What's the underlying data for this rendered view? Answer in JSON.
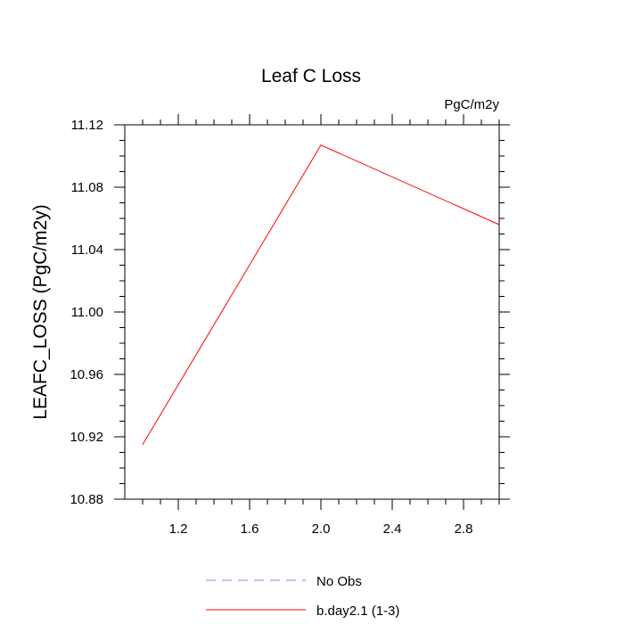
{
  "chart_data": {
    "type": "line",
    "title": "Leaf C Loss",
    "units": "PgC/m2y",
    "xlabel": "",
    "ylabel": "LEAFC_LOSS  (PgC/m2y)",
    "xlim": [
      0.9,
      3.0
    ],
    "ylim": [
      10.88,
      11.12
    ],
    "x_ticks": [
      1.2,
      1.6,
      2.0,
      2.4,
      2.8
    ],
    "x_tick_labels": [
      "1.2",
      "1.6",
      "2.0",
      "2.4",
      "2.8"
    ],
    "y_ticks": [
      10.88,
      10.92,
      10.96,
      11.0,
      11.04,
      11.08,
      11.12
    ],
    "y_tick_labels": [
      "10.88",
      "10.92",
      "10.96",
      "11.00",
      "11.04",
      "11.08",
      "11.12"
    ],
    "grid": false,
    "legend_position": "bottom",
    "series": [
      {
        "name": "No Obs",
        "x": [],
        "y": [],
        "color": "#8080ff",
        "dash": "dashed"
      },
      {
        "name": "b.day2.1 (1-3)",
        "x": [
          1,
          2,
          3
        ],
        "y": [
          10.915,
          11.107,
          11.056
        ],
        "color": "#ff0000",
        "dash": "solid"
      }
    ]
  }
}
